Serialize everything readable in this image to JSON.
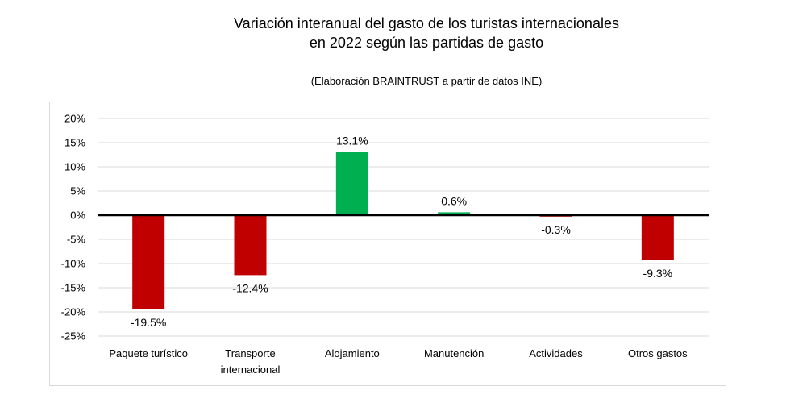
{
  "header": {
    "title_line1": "Variación interanual del gasto de los turistas internacionales",
    "title_line2": "en 2022 según las partidas de gasto",
    "subtitle": "(Elaboración BRAINTRUST a partir de datos INE)"
  },
  "colors": {
    "positive": "#00b050",
    "negative": "#c00000",
    "gridline": "#d9d9d9",
    "zero_line": "#000000",
    "frame_border": "#d9d9d9"
  },
  "chart_data": {
    "type": "bar",
    "title": "Variación interanual del gasto de los turistas internacionales en 2022 según las partidas de gasto",
    "subtitle": "(Elaboración BRAINTRUST a partir de datos INE)",
    "categories": [
      [
        "Paquete turístico"
      ],
      [
        "Transporte",
        "internacional"
      ],
      [
        "Alojamiento"
      ],
      [
        "Manutención"
      ],
      [
        "Actividades"
      ],
      [
        "Otros gastos"
      ]
    ],
    "values": [
      -19.5,
      -12.4,
      13.1,
      0.6,
      -0.3,
      -9.3
    ],
    "data_labels": [
      "-19.5%",
      "-12.4%",
      "13.1%",
      "0.6%",
      "-0.3%",
      "-9.3%"
    ],
    "ylim": [
      -25,
      20
    ],
    "yticks": [
      20,
      15,
      10,
      5,
      0,
      -5,
      -10,
      -15,
      -20,
      -25
    ],
    "ytick_labels": [
      "20%",
      "15%",
      "10%",
      "5%",
      "0%",
      "-5%",
      "-10%",
      "-15%",
      "-20%",
      "-25%"
    ],
    "xlabel": "",
    "ylabel": "",
    "grid": true,
    "legend": "none"
  }
}
